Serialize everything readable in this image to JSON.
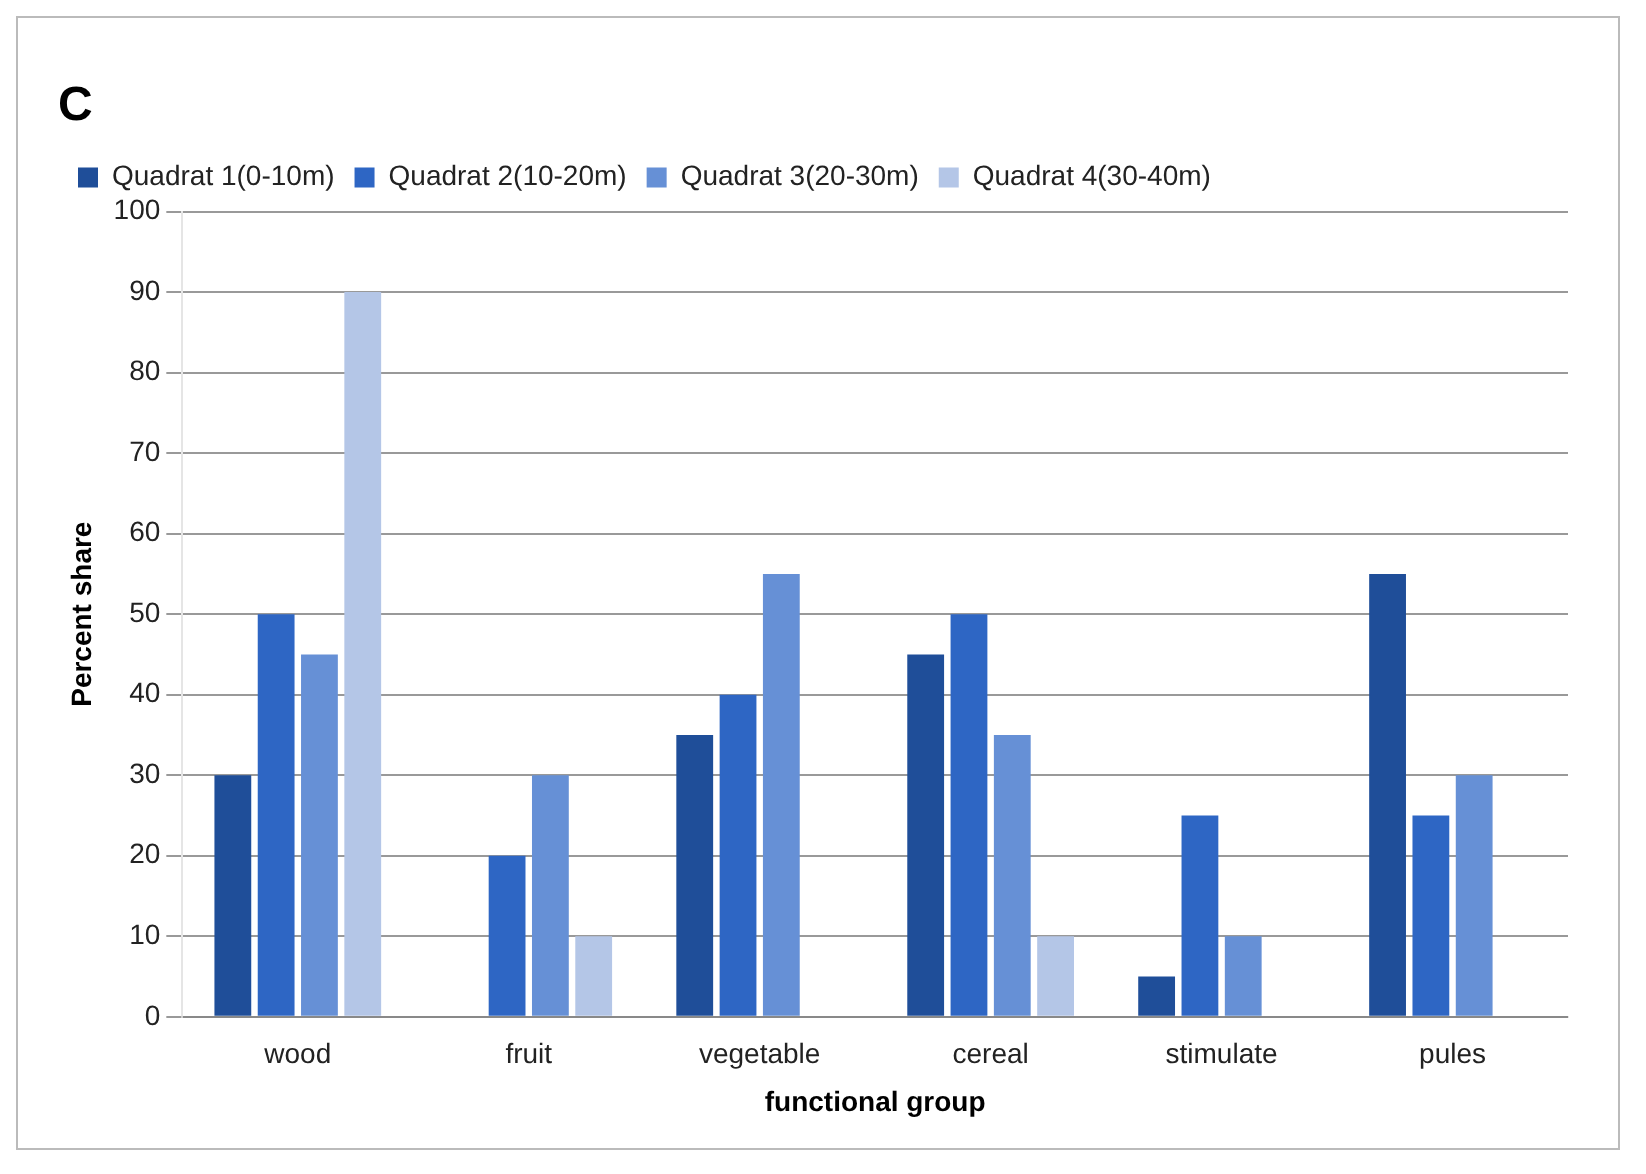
{
  "chart_data": {
    "type": "bar",
    "title": "C",
    "xlabel": "functional group",
    "ylabel": "Percent share",
    "categories": [
      "wood",
      "fruit",
      "vegetable",
      "cereal",
      "stimulate",
      "pules"
    ],
    "series": [
      {
        "name": "Quadrat 1(0-10m)",
        "color": "#1f4e99",
        "values": [
          30,
          0,
          35,
          45,
          5,
          55
        ]
      },
      {
        "name": "Quadrat 2(10-20m)",
        "color": "#2e66c4",
        "values": [
          50,
          20,
          40,
          50,
          25,
          25
        ]
      },
      {
        "name": "Quadrat 3(20-30m)",
        "color": "#6690d6",
        "values": [
          45,
          30,
          55,
          35,
          10,
          30
        ]
      },
      {
        "name": "Quadrat 4(30-40m)",
        "color": "#b4c6e7",
        "values": [
          90,
          10,
          0,
          10,
          0,
          0
        ]
      }
    ],
    "ylim": [
      0,
      100
    ],
    "yticks": [
      0,
      10,
      20,
      30,
      40,
      50,
      60,
      70,
      80,
      90,
      100
    ],
    "grid": "y",
    "legend": "top"
  }
}
